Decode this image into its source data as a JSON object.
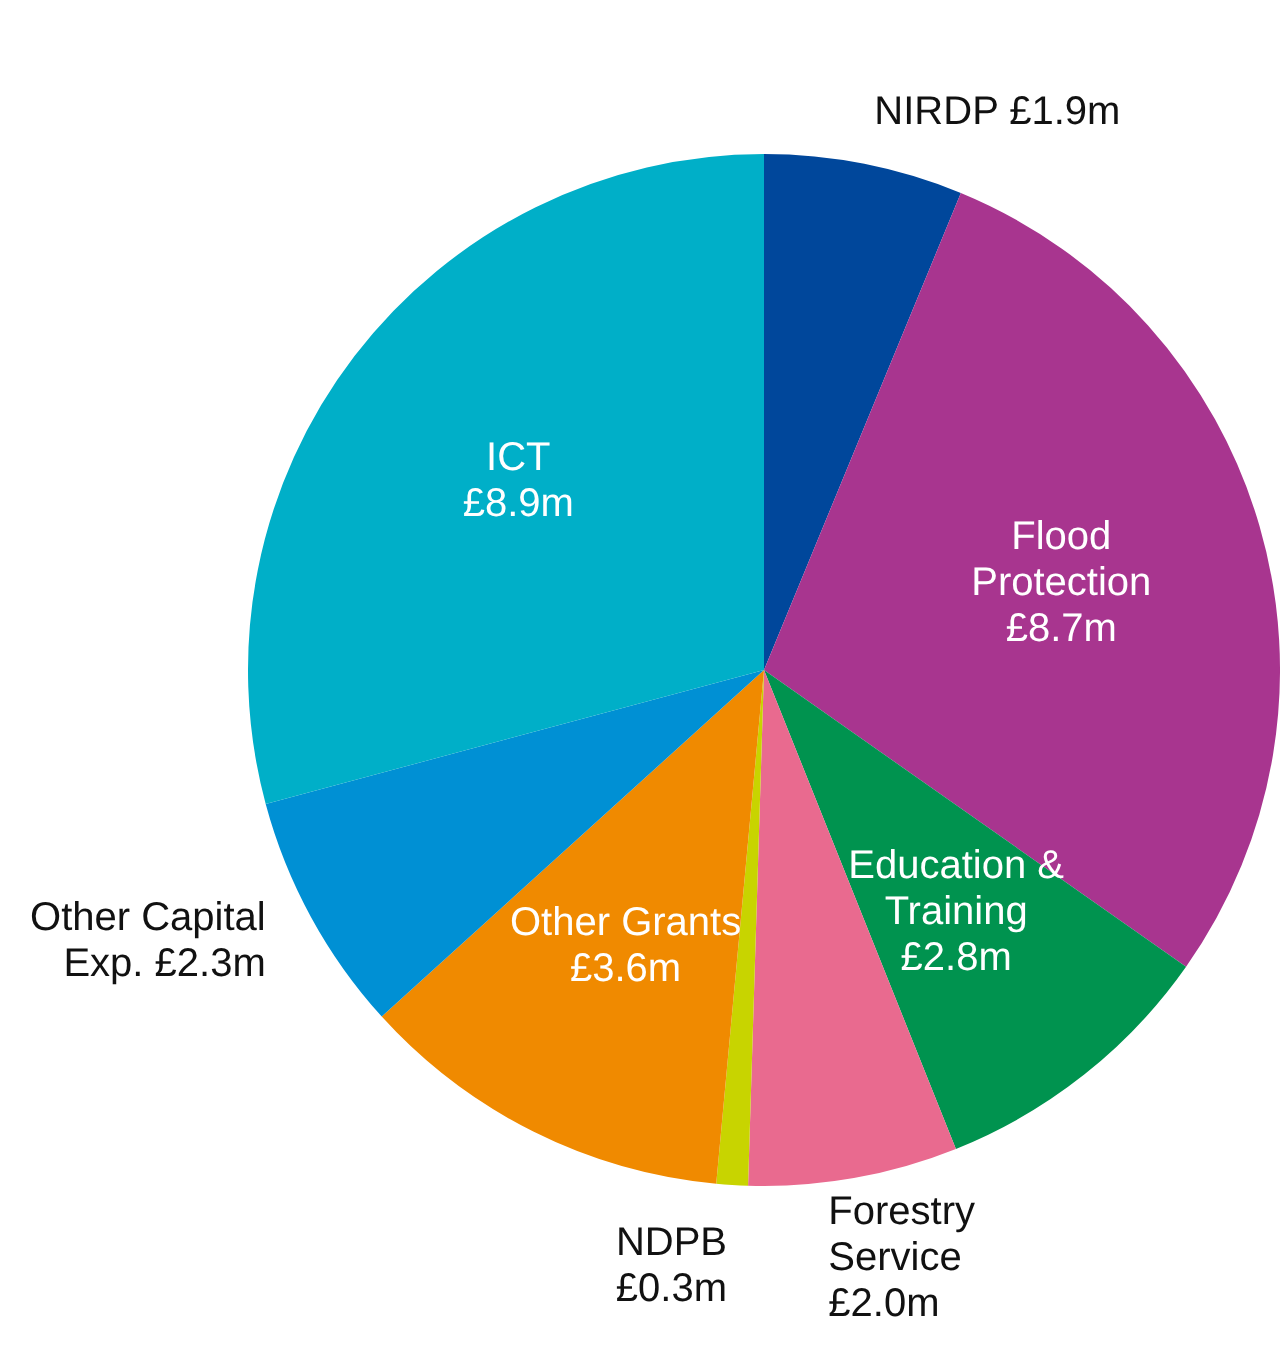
{
  "chart_data": {
    "type": "pie",
    "categories": [
      "NIRDP",
      "Flood Protection",
      "Education & Training",
      "Forestry Service",
      "NDPB",
      "Other Grants",
      "Other Capital Exp.",
      "ICT"
    ],
    "values": [
      1.9,
      8.7,
      2.8,
      2.0,
      0.3,
      3.6,
      2.3,
      8.9
    ],
    "value_labels": [
      "£1.9m",
      "£8.7m",
      "£2.8m",
      "£2.0m",
      "£0.3m",
      "£3.6m",
      "£2.3m",
      "£8.9m"
    ],
    "colors": [
      "#00479b",
      "#a8358f",
      "#00934f",
      "#e96a8f",
      "#c8d400",
      "#f08a00",
      "#0090d4",
      "#00afc8"
    ],
    "legend": false
  }
}
